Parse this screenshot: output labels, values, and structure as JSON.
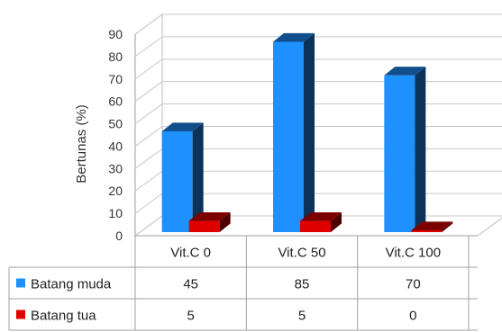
{
  "chart_data": {
    "type": "bar",
    "categories": [
      "Vit.C 0",
      "Vit.C  50",
      "Vit.C 100"
    ],
    "series": [
      {
        "name": "Batang muda",
        "values": [
          45,
          85,
          70
        ],
        "color": "#1e90ff"
      },
      {
        "name": "Batang tua",
        "values": [
          5,
          5,
          0
        ],
        "color": "#e00000"
      }
    ],
    "title": "",
    "xlabel": "",
    "ylabel": "Bertunas (%)",
    "ylim": [
      0,
      90
    ],
    "yticks": [
      0,
      10,
      20,
      30,
      40,
      50,
      60,
      70,
      80,
      90
    ],
    "grid": true,
    "legend": "data-table-left",
    "style": "3d-column"
  }
}
